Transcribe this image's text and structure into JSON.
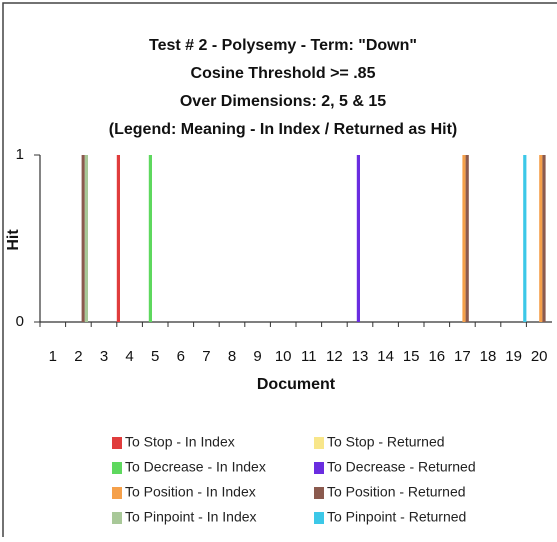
{
  "chart_data": {
    "type": "bar",
    "title": [
      "Test # 2 - Polysemy - Term: \"Down\"",
      "Cosine Threshold >= .85",
      "Over Dimensions: 2, 5 & 15",
      "(Legend: Meaning - In Index / Returned as Hit)"
    ],
    "xlabel": "Document",
    "ylabel": "Hit",
    "categories": [
      "1",
      "2",
      "3",
      "4",
      "5",
      "6",
      "7",
      "8",
      "9",
      "10",
      "11",
      "12",
      "13",
      "14",
      "15",
      "16",
      "17",
      "18",
      "19",
      "20"
    ],
    "ylim": [
      0,
      1
    ],
    "yticks": [
      0,
      1
    ],
    "series": [
      {
        "name": "To Stop - In Index",
        "color": "#e03c3c",
        "values": [
          0,
          0,
          0,
          1,
          0,
          0,
          0,
          0,
          0,
          0,
          0,
          0,
          0,
          0,
          0,
          0,
          0,
          0,
          0,
          0
        ]
      },
      {
        "name": "To Stop - Returned",
        "color": "#f8e68a",
        "values": [
          0,
          0,
          0,
          0,
          0,
          0,
          0,
          0,
          0,
          0,
          0,
          0,
          0,
          0,
          0,
          0,
          0,
          0,
          0,
          0
        ]
      },
      {
        "name": "To Decrease - In Index",
        "color": "#5ed85e",
        "values": [
          0,
          0,
          0,
          0,
          1,
          0,
          0,
          0,
          0,
          0,
          0,
          0,
          0,
          0,
          0,
          0,
          0,
          0,
          0,
          0
        ]
      },
      {
        "name": "To Decrease - Returned",
        "color": "#6a2de0",
        "values": [
          0,
          0,
          0,
          0,
          0,
          0,
          0,
          0,
          0,
          0,
          0,
          0,
          1,
          0,
          0,
          0,
          0,
          0,
          0,
          0
        ]
      },
      {
        "name": "To Position - In Index",
        "color": "#f5a04a",
        "values": [
          0,
          0,
          0,
          0,
          0,
          0,
          0,
          0,
          0,
          0,
          0,
          0,
          0,
          0,
          0,
          0,
          1,
          0,
          0,
          1
        ]
      },
      {
        "name": "To Position - Returned",
        "color": "#8b5a4e",
        "values": [
          0,
          1,
          0,
          0,
          0,
          0,
          0,
          0,
          0,
          0,
          0,
          0,
          0,
          0,
          0,
          0,
          1,
          0,
          0,
          1
        ]
      },
      {
        "name": "To Pinpoint - In Index",
        "color": "#a8c898",
        "values": [
          0,
          1,
          0,
          0,
          0,
          0,
          0,
          0,
          0,
          0,
          0,
          0,
          0,
          0,
          0,
          0,
          0,
          0,
          0,
          0
        ]
      },
      {
        "name": "To Pinpoint - Returned",
        "color": "#3cc8e8",
        "values": [
          0,
          0,
          0,
          0,
          0,
          0,
          0,
          0,
          0,
          0,
          0,
          0,
          0,
          0,
          0,
          0,
          0,
          0,
          1,
          0
        ]
      }
    ]
  }
}
